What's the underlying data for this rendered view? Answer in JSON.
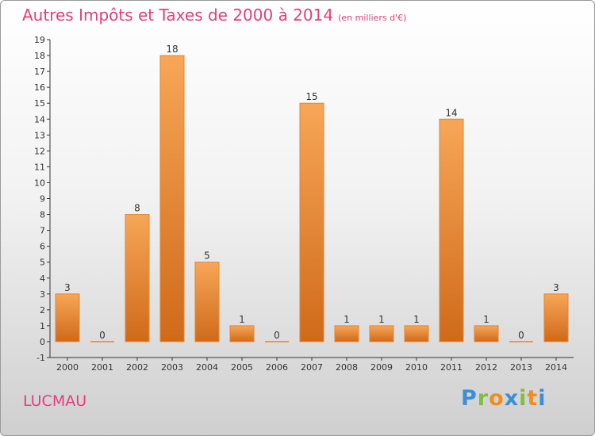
{
  "title": {
    "main": "Autres Impôts et Taxes de 2000 à 2014",
    "unit": "(en milliers d'€)"
  },
  "commune": "LUCMAU",
  "logo": {
    "text": "Proxiti",
    "letters": [
      {
        "ch": "P",
        "color": "#3a8fd8"
      },
      {
        "ch": "r",
        "color": "#7fbf3a"
      },
      {
        "ch": "o",
        "color": "#f28c1e"
      },
      {
        "ch": "x",
        "color": "#3a8fd8"
      },
      {
        "ch": "i",
        "color": "#7fbf3a"
      },
      {
        "ch": "t",
        "color": "#f28c1e"
      },
      {
        "ch": "i",
        "color": "#3a8fd8"
      }
    ]
  },
  "chart_data": {
    "type": "bar",
    "categories": [
      "2000",
      "2001",
      "2002",
      "2003",
      "2004",
      "2005",
      "2006",
      "2007",
      "2008",
      "2009",
      "2010",
      "2011",
      "2012",
      "2013",
      "2014"
    ],
    "values": [
      3,
      0,
      8,
      18,
      5,
      1,
      0,
      15,
      1,
      1,
      1,
      14,
      1,
      0,
      3
    ],
    "ylim": [
      -1,
      19
    ],
    "yticks": [
      -1,
      0,
      1,
      2,
      3,
      4,
      5,
      6,
      7,
      8,
      9,
      10,
      11,
      12,
      13,
      14,
      15,
      16,
      17,
      18,
      19
    ],
    "grid": false,
    "bar_color": "#e8842e"
  }
}
